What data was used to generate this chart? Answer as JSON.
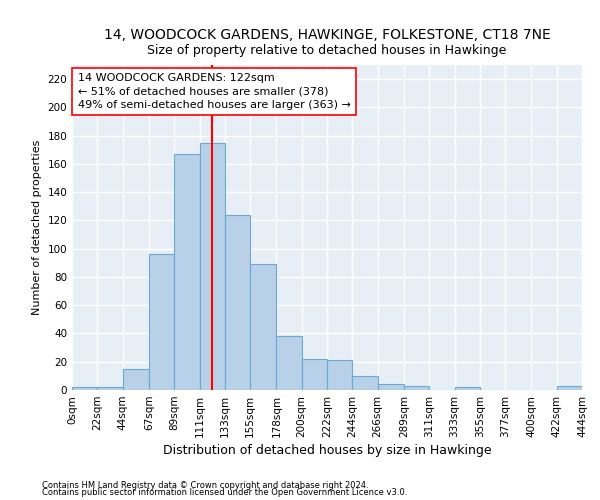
{
  "title": "14, WOODCOCK GARDENS, HAWKINGE, FOLKESTONE, CT18 7NE",
  "subtitle": "Size of property relative to detached houses in Hawkinge",
  "xlabel": "Distribution of detached houses by size in Hawkinge",
  "ylabel": "Number of detached properties",
  "bar_edges": [
    0,
    22,
    44,
    67,
    89,
    111,
    133,
    155,
    178,
    200,
    222,
    244,
    266,
    289,
    311,
    333,
    355,
    377,
    400,
    422,
    444
  ],
  "bar_heights": [
    2,
    2,
    15,
    96,
    167,
    175,
    124,
    89,
    38,
    22,
    21,
    10,
    4,
    3,
    0,
    2,
    0,
    0,
    0,
    3
  ],
  "bar_color": "#b8d0e8",
  "bar_edge_color": "#6aaad4",
  "vline_x": 122,
  "vline_color": "red",
  "annotation_line1": "14 WOODCOCK GARDENS: 122sqm",
  "annotation_line2": "← 51% of detached houses are smaller (378)",
  "annotation_line3": "49% of semi-detached houses are larger (363) →",
  "ylim": [
    0,
    230
  ],
  "yticks": [
    0,
    20,
    40,
    60,
    80,
    100,
    120,
    140,
    160,
    180,
    200,
    220
  ],
  "background_color": "#e8eef5",
  "grid_color": "white",
  "footnote1": "Contains HM Land Registry data © Crown copyright and database right 2024.",
  "footnote2": "Contains public sector information licensed under the Open Government Licence v3.0.",
  "title_fontsize": 10,
  "subtitle_fontsize": 9,
  "xlabel_fontsize": 9,
  "ylabel_fontsize": 8,
  "tick_fontsize": 7.5,
  "ann_fontsize": 8,
  "footnote_fontsize": 6
}
